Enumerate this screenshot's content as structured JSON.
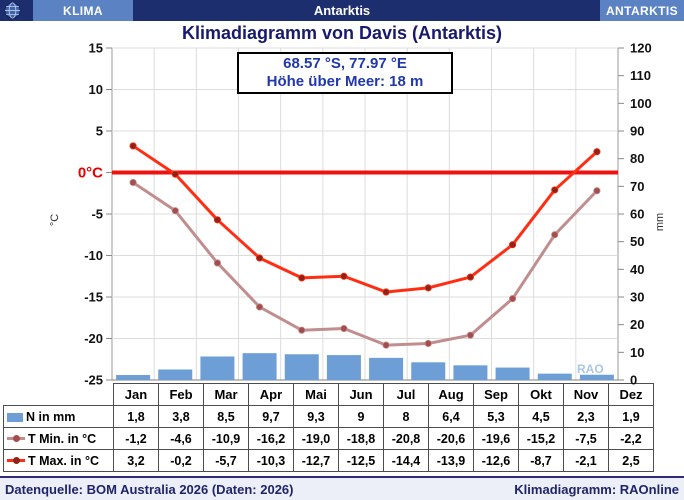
{
  "header": {
    "left_tab": "KLIMA",
    "center": "Antarktis",
    "right_tab": "ANTARKTIS"
  },
  "title": "Klimadiagramm von Davis (Antarktis)",
  "subtitle": {
    "line1": "68.57 °S, 77.97 °E",
    "line2": "Höhe über Meer: 18 m"
  },
  "chart_data": {
    "type": "bar+line combo climate diagram",
    "categories": [
      "Jan",
      "Feb",
      "Mar",
      "Apr",
      "Mai",
      "Jun",
      "Jul",
      "Aug",
      "Sep",
      "Okt",
      "Nov",
      "Dez"
    ],
    "series": [
      {
        "name": "N in mm",
        "type": "bar",
        "axis": "right",
        "color": "#6d9fd6",
        "values": [
          1.8,
          3.8,
          8.5,
          9.7,
          9.3,
          9,
          8,
          6.4,
          5.3,
          4.5,
          2.3,
          1.9
        ]
      },
      {
        "name": "T Min. in °C",
        "type": "line",
        "axis": "left",
        "color": "#c08e8e",
        "marker_color": "#a34d4d",
        "values": [
          -1.2,
          -4.6,
          -10.9,
          -16.2,
          -19.0,
          -18.8,
          -20.8,
          -20.6,
          -19.6,
          -15.2,
          -7.5,
          -2.2
        ]
      },
      {
        "name": "T Max. in °C",
        "type": "line",
        "axis": "left",
        "color": "#ff2e12",
        "marker_color": "#8e2417",
        "values": [
          3.2,
          -0.2,
          -5.7,
          -10.3,
          -12.7,
          -12.5,
          -14.4,
          -13.9,
          -12.6,
          -8.7,
          -2.1,
          2.5
        ]
      }
    ],
    "left_axis": {
      "label": "°C",
      "min": -25,
      "max": 15,
      "tick_step": 5,
      "zero_label": "0°C",
      "zero_color": "#e60000"
    },
    "right_axis": {
      "label": "mm",
      "min": 0,
      "max": 120,
      "tick_step": 10
    },
    "zero_line_color": "#ee1111",
    "grid": true,
    "legend_position": "table below chart",
    "watermark": "RAO"
  },
  "table": {
    "columns": [
      "Jan",
      "Feb",
      "Mar",
      "Apr",
      "Mai",
      "Jun",
      "Jul",
      "Aug",
      "Sep",
      "Okt",
      "Nov",
      "Dez"
    ],
    "rows": [
      {
        "label": "N in mm",
        "legend": "bar",
        "series": "N in mm",
        "values": [
          "1,8",
          "3,8",
          "8,5",
          "9,7",
          "9,3",
          "9",
          "8",
          "6,4",
          "5,3",
          "4,5",
          "2,3",
          "1,9"
        ]
      },
      {
        "label": "T Min. in °C",
        "legend": "line",
        "series": "T Min. in °C",
        "values": [
          "-1,2",
          "-4,6",
          "-10,9",
          "-16,2",
          "-19,0",
          "-18,8",
          "-20,8",
          "-20,6",
          "-19,6",
          "-15,2",
          "-7,5",
          "-2,2"
        ]
      },
      {
        "label": "T Max. in °C",
        "legend": "line",
        "series": "T Max. in °C",
        "values": [
          "3,2",
          "-0,2",
          "-5,7",
          "-10,3",
          "-12,7",
          "-12,5",
          "-14,4",
          "-13,9",
          "-12,6",
          "-8,7",
          "-2,1",
          "2,5"
        ]
      }
    ]
  },
  "footer": {
    "left": "Datenquelle: BOM Australia 2026 (Daten: 2026)",
    "right": "Klimadiagramm: RAOnline"
  },
  "colors": {
    "header_navy": "#1d2e6e",
    "header_tab_blue": "#5b83c3",
    "title_navy": "#181a6e",
    "subtitle_blue": "#2138a8",
    "footer_bg": "#edeff8"
  }
}
